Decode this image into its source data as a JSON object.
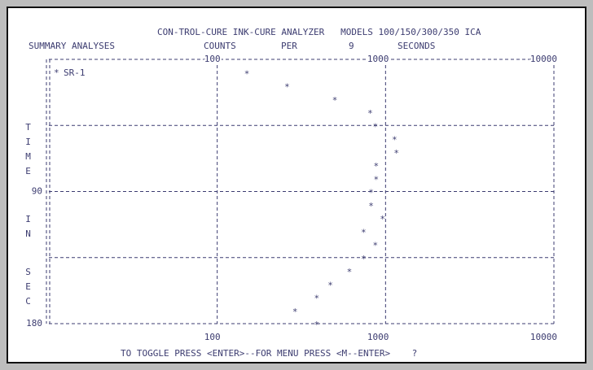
{
  "chart_data": {
    "type": "scatter",
    "title": "CON-TROL-CURE INK-CURE ANALYZER   MODELS 100/150/300/350 ICA",
    "subtitle": "SUMMARY ANALYSES",
    "x_label_parts": [
      "COUNTS",
      "PER",
      "9",
      "SECONDS"
    ],
    "y_label_parts": [
      "TIME",
      "IN",
      "SEC"
    ],
    "xlog": true,
    "xlim": [
      10,
      10000
    ],
    "xticks": [
      100,
      1000,
      10000
    ],
    "ylim": [
      0,
      180
    ],
    "yticks": [
      90,
      180
    ],
    "ygrid": [
      0,
      45,
      90,
      135,
      180
    ],
    "color": "#3c3c70",
    "series": [
      {
        "name": "SR-1",
        "x": [
          150,
          260,
          500,
          810,
          870,
          1130,
          1160,
          880,
          880,
          820,
          820,
          960,
          740,
          870,
          740,
          610,
          470,
          390,
          290,
          390
        ],
        "values": [
          9,
          18,
          27,
          36,
          45,
          54,
          63,
          72,
          81,
          90,
          99,
          108,
          117,
          126,
          135,
          144,
          153,
          162,
          171,
          180
        ]
      }
    ],
    "footer": "TO TOGGLE PRESS <ENTER>--FOR MENU PRESS <M--ENTER>    ?"
  }
}
